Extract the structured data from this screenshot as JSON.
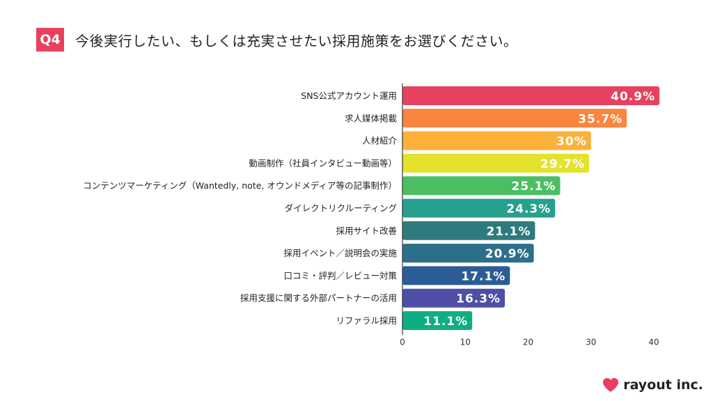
{
  "header": {
    "badge": "Q4",
    "question": "今後実行したい、もしくは充実させたい採用施策をお選びください。"
  },
  "brand": {
    "name": "rayout inc.",
    "color": "#e8405f"
  },
  "chart_data": {
    "type": "bar",
    "orientation": "horizontal",
    "categories": [
      "SNS公式アカウント運用",
      "求人媒体掲載",
      "人材紹介",
      "動画制作（社員インタビュー動画等）",
      "コンテンツマーケティング（Wantedly, note, オウンドメディア等の記事制作）",
      "ダイレクトリクルーティング",
      "採用サイト改善",
      "採用イベント／説明会の実施",
      "口コミ・評判／レビュー対策",
      "採用支援に関する外部パートナーの活用",
      "リファラル採用"
    ],
    "values": [
      40.9,
      35.7,
      30,
      29.7,
      25.1,
      24.3,
      21.1,
      20.9,
      17.1,
      16.3,
      11.1
    ],
    "value_labels": [
      "40.9%",
      "35.7%",
      "30%",
      "29.7%",
      "25.1%",
      "24.3%",
      "21.1%",
      "20.9%",
      "17.1%",
      "16.3%",
      "11.1%"
    ],
    "colors": [
      "#e8405f",
      "#f9853e",
      "#fcb13b",
      "#e3e22d",
      "#4cbe62",
      "#27a08e",
      "#2e7b7f",
      "#2d6f8a",
      "#2c5c95",
      "#4e4fa6",
      "#0fae82"
    ],
    "xlim": [
      0,
      40
    ],
    "xticks": [
      0,
      10,
      20,
      30,
      40
    ],
    "xtick_labels": [
      "0",
      "10",
      "20",
      "30",
      "40"
    ],
    "grid": false
  }
}
